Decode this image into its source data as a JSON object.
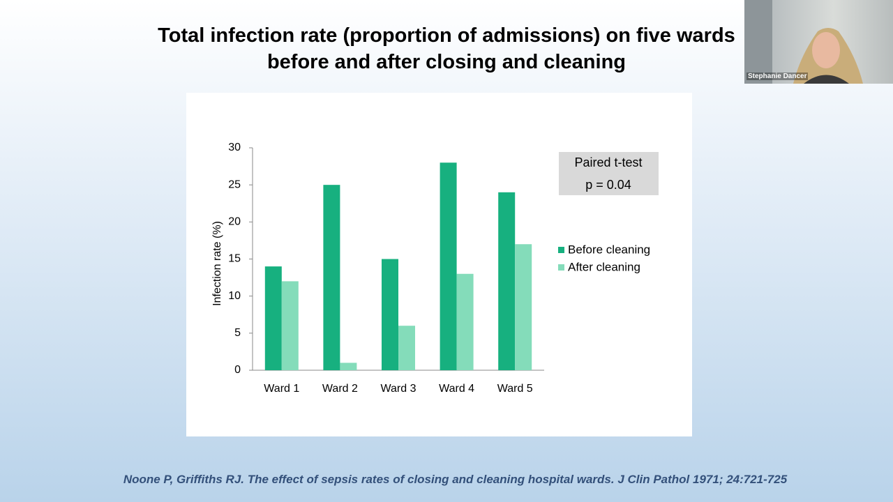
{
  "chart_data": {
    "type": "bar",
    "title": "Total infection rate (proportion of admissions) on five wards before and after closing and cleaning",
    "y_label": "Infection rate (%)",
    "categories": [
      "Ward 1",
      "Ward 2",
      "Ward 3",
      "Ward 4",
      "Ward 5"
    ],
    "series": [
      {
        "name": "Before cleaning",
        "color": "#17b07f",
        "values": [
          14,
          25,
          15,
          28,
          24
        ]
      },
      {
        "name": "After cleaning",
        "color": "#84dcba",
        "values": [
          12,
          1,
          6,
          13,
          17
        ]
      }
    ],
    "ylim": [
      0,
      30
    ],
    "yticks": [
      0,
      5,
      10,
      15,
      20,
      25,
      30
    ],
    "grid": false,
    "legend": "right",
    "annotations": [
      "Paired t-test",
      "p = 0.04"
    ]
  },
  "citation": "Noone P, Griffiths RJ. The effect of sepsis rates of closing and cleaning hospital wards. J Clin Pathol 1971; 24:721-725",
  "participant": {
    "name": "Stephanie Dancer"
  }
}
